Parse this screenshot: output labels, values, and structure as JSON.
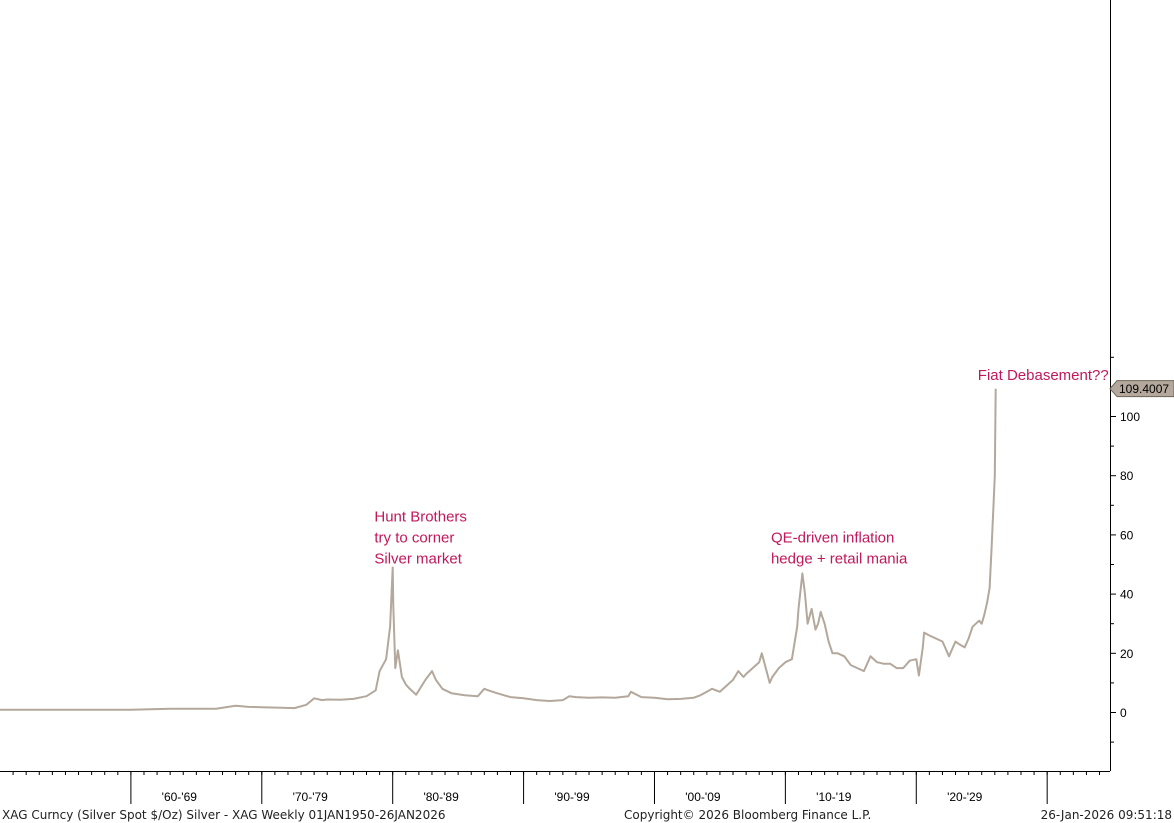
{
  "chart_data": {
    "type": "line",
    "title": "",
    "xlabel": "",
    "ylabel": "",
    "ylim": [
      -10,
      120
    ],
    "xlim": [
      1950.0,
      2034.8
    ],
    "y_ticks": [
      0,
      20,
      40,
      60,
      80,
      100
    ],
    "y_tick_labels": [
      "0",
      "20",
      "40",
      "60",
      "80",
      "100"
    ],
    "y_minor_step": 10,
    "x_decade_labels": [
      "'60-'69",
      "'70-'79",
      "'80-'89",
      "'90-'99",
      "'00-'09",
      "'10-'19",
      "'20-'29"
    ],
    "grid": false,
    "legend": "none",
    "line_color": "#b3a89b",
    "last_value": {
      "value": 109.4007,
      "label": "109.4007"
    },
    "annotations": [
      {
        "lines": [
          "Hunt Brothers",
          "try to corner",
          "Silver market"
        ],
        "x": 1978.6,
        "y": 64.6,
        "color": "#c2185b"
      },
      {
        "lines": [
          "QE-driven inflation",
          "hedge + retail mania"
        ],
        "x": 2008.9,
        "y": 57.4,
        "color": "#c2185b"
      },
      {
        "lines": [
          "Fiat Debasement??"
        ],
        "x": 2024.7,
        "y": 112.3,
        "color": "#c2185b"
      }
    ],
    "series": [
      {
        "x": [
          1950.0,
          1955.0,
          1960.0,
          1963.0,
          1964.0,
          1965.0,
          1966.5,
          1968.0,
          1969.0,
          1970.0,
          1971.5,
          1972.5,
          1973.4,
          1974.0,
          1974.6,
          1975.0,
          1976.0,
          1977.0,
          1978.0,
          1978.7,
          1979.0,
          1979.5,
          1979.8,
          1980.0,
          1980.05,
          1980.2,
          1980.4,
          1980.7,
          1981.0,
          1981.3,
          1981.8,
          1982.5,
          1983.0,
          1983.3,
          1983.8,
          1984.5,
          1985.5,
          1986.5,
          1987.0,
          1987.3,
          1988.0,
          1989.0,
          1990.0,
          1991.0,
          1992.0,
          1993.0,
          1993.5,
          1994.0,
          1995.0,
          1996.0,
          1997.0,
          1998.0,
          1998.2,
          1999.0,
          2000.0,
          2001.0,
          2002.0,
          2003.0,
          2003.5,
          2004.0,
          2004.4,
          2005.0,
          2006.0,
          2006.4,
          2006.8,
          2007.0,
          2008.0,
          2008.2,
          2008.8,
          2009.0,
          2009.5,
          2010.0,
          2010.5,
          2010.9,
          2011.0,
          2011.3,
          2011.5,
          2011.7,
          2012.0,
          2012.3,
          2012.5,
          2012.7,
          2013.0,
          2013.3,
          2013.6,
          2014.0,
          2014.5,
          2015.0,
          2015.5,
          2016.0,
          2016.5,
          2017.0,
          2017.5,
          2018.0,
          2018.5,
          2019.0,
          2019.5,
          2020.0,
          2020.2,
          2020.5,
          2020.6,
          2021.0,
          2021.5,
          2022.0,
          2022.5,
          2022.7,
          2023.0,
          2023.3,
          2023.7,
          2024.0,
          2024.3,
          2024.8,
          2025.0,
          2025.2,
          2025.4,
          2025.6,
          2025.75,
          2025.9,
          2026.0,
          2026.07
        ],
        "y": [
          0.9,
          0.9,
          0.9,
          1.3,
          1.3,
          1.3,
          1.3,
          2.3,
          1.9,
          1.8,
          1.6,
          1.5,
          2.6,
          4.8,
          4.2,
          4.4,
          4.3,
          4.6,
          5.5,
          7.5,
          14.0,
          18.0,
          29.0,
          49.0,
          36.0,
          15.0,
          21.0,
          12.0,
          9.5,
          8.0,
          6.0,
          11.0,
          14.0,
          11.0,
          8.0,
          6.5,
          5.8,
          5.5,
          8.0,
          7.5,
          6.5,
          5.2,
          4.8,
          4.2,
          3.9,
          4.2,
          5.5,
          5.2,
          5.0,
          5.1,
          5.0,
          5.5,
          7.0,
          5.2,
          5.0,
          4.5,
          4.6,
          5.0,
          5.8,
          7.0,
          8.0,
          7.0,
          11.0,
          14.0,
          12.0,
          13.0,
          17.0,
          20.0,
          10.0,
          12.0,
          15.0,
          17.0,
          18.0,
          29.0,
          35.0,
          47.0,
          40.0,
          30.0,
          35.0,
          28.0,
          30.0,
          34.0,
          30.0,
          24.0,
          20.0,
          20.0,
          19.0,
          16.0,
          15.0,
          14.0,
          19.0,
          17.0,
          16.5,
          16.5,
          15.0,
          15.0,
          17.5,
          18.0,
          12.5,
          22.0,
          27.0,
          26.0,
          25.0,
          24.0,
          19.0,
          21.0,
          24.0,
          23.0,
          22.0,
          25.0,
          29.0,
          31.0,
          30.0,
          33.0,
          37.0,
          42.0,
          55.0,
          70.0,
          80.0,
          109.4007
        ]
      }
    ]
  },
  "footer": {
    "left": "XAG Curncy (Silver Spot  $/Oz) Silver - XAG Weekly 01JAN1950-26JAN2026",
    "center": "Copyright© 2026 Bloomberg Finance L.P.",
    "right": "26-Jan-2026 09:51:18"
  }
}
